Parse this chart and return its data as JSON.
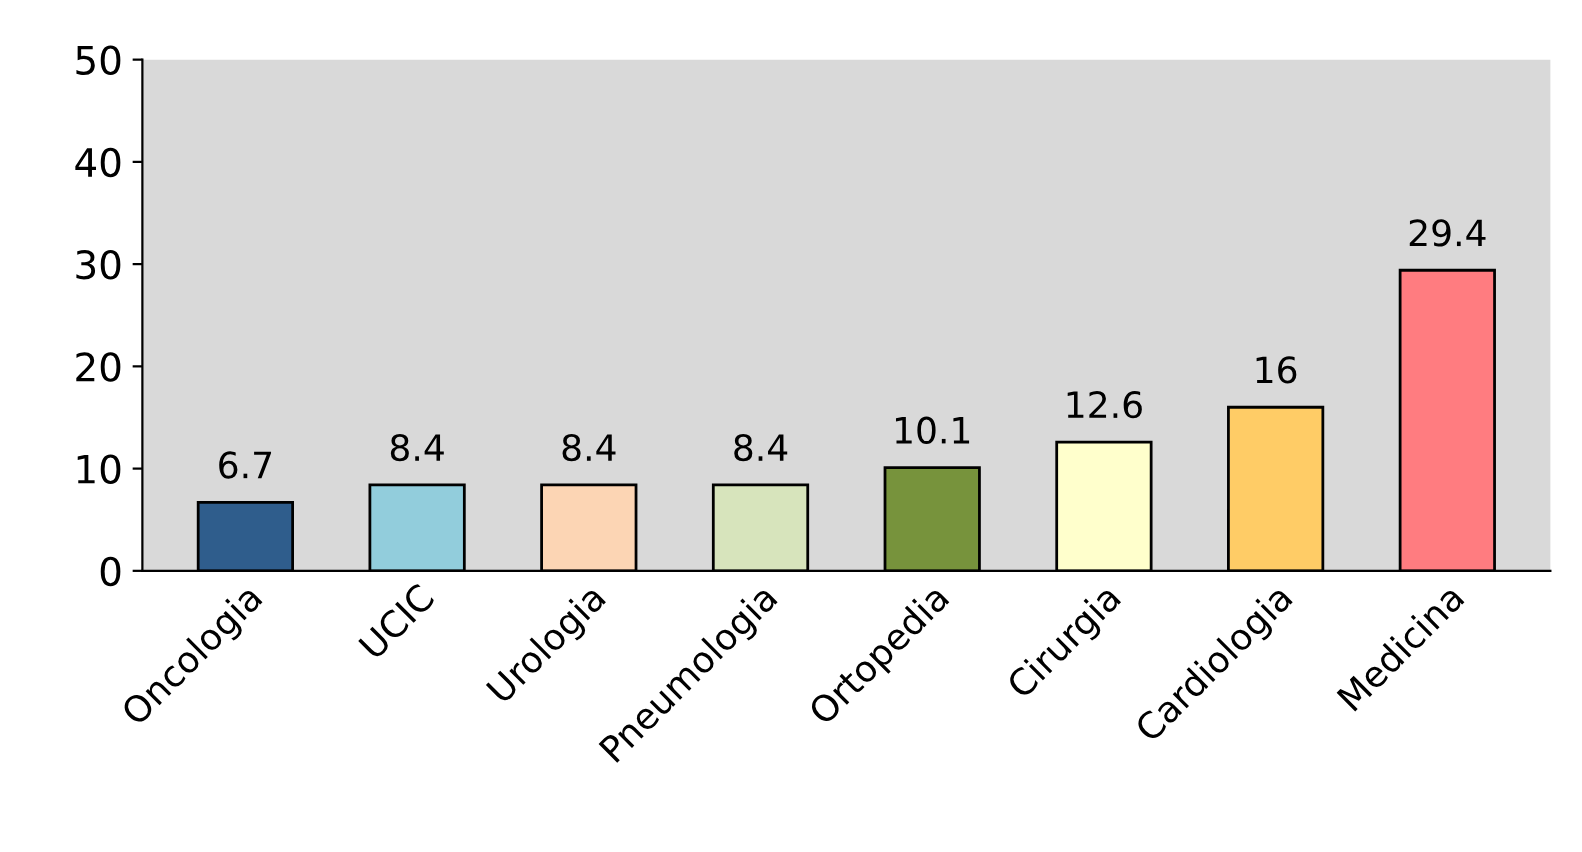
{
  "chart_data": {
    "type": "bar",
    "categories": [
      "Oncologia",
      "UCIC",
      "Urologia",
      "Pneumologia",
      "Ortopedia",
      "Cirurgia",
      "Cardiologia",
      "Medicina"
    ],
    "values": [
      6.7,
      8.4,
      8.4,
      8.4,
      10.1,
      12.6,
      16,
      29.4
    ],
    "colors": [
      "#2f5d8c",
      "#92cddc",
      "#fcd5b4",
      "#d7e4bc",
      "#77933c",
      "#ffffcc",
      "#ffcc66",
      "#ff7c80"
    ],
    "ylim": [
      0,
      50
    ],
    "yticks": [
      0,
      10,
      20,
      30,
      40,
      50
    ],
    "grid": false,
    "data_labels": true
  }
}
